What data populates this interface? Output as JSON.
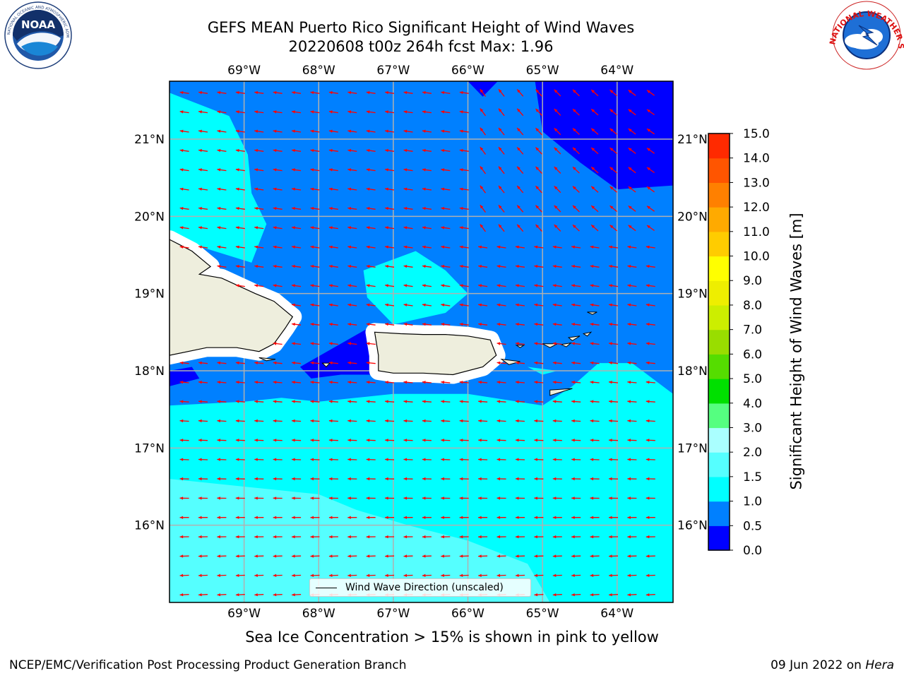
{
  "title": {
    "line1": "GEFS MEAN Puerto Rico Significant Height of Wind Waves",
    "line2": "20220608 t00z 264h fcst   Max: 1.96"
  },
  "subtitle": "Sea Ice Concentration > 15% is shown in pink to yellow",
  "footer": {
    "left": "NCEP/EMC/Verification Post Processing Product Generation Branch",
    "right_text": "09 Jun 2022 on ",
    "right_host": "Hera"
  },
  "logos": {
    "left": {
      "label": "NOAA",
      "ring_text": "NATIONAL OCEANIC AND ATMOSPHERIC ADMINISTRATION · U.S. DEPARTMENT OF COMMERCE"
    },
    "right": {
      "ring_text": "NATIONAL WEATHER SERVICE"
    }
  },
  "legend": {
    "label": "Wind Wave Direction (unscaled)"
  },
  "map": {
    "lon_range": [
      -70.0,
      -63.25
    ],
    "lat_range": [
      15.0,
      21.75
    ],
    "lon_ticks": [
      {
        "lon": -69,
        "label": "69°W"
      },
      {
        "lon": -68,
        "label": "68°W"
      },
      {
        "lon": -67,
        "label": "67°W"
      },
      {
        "lon": -66,
        "label": "66°W"
      },
      {
        "lon": -65,
        "label": "65°W"
      },
      {
        "lon": -64,
        "label": "64°W"
      }
    ],
    "lat_ticks": [
      {
        "lat": 21,
        "label": "21°N"
      },
      {
        "lat": 20,
        "label": "20°N"
      },
      {
        "lat": 19,
        "label": "19°N"
      },
      {
        "lat": 18,
        "label": "18°N"
      },
      {
        "lat": 17,
        "label": "17°N"
      },
      {
        "lat": 16,
        "label": "16°N"
      }
    ],
    "arrow_color": "#ff0000",
    "land_color": "#eeeedd",
    "gridlines": true,
    "field_regions": [
      {
        "level": "0.0-0.5",
        "color": "#0000ff",
        "lonlat": [
          [
            -65.1,
            21.75
          ],
          [
            -63.25,
            21.75
          ],
          [
            -63.25,
            20.4
          ],
          [
            -64.0,
            20.35
          ],
          [
            -64.5,
            20.7
          ],
          [
            -65.0,
            21.1
          ]
        ]
      },
      {
        "level": "0.0-0.5",
        "color": "#0000ff",
        "lonlat": [
          [
            -66.0,
            21.75
          ],
          [
            -65.6,
            21.75
          ],
          [
            -65.8,
            21.55
          ]
        ]
      },
      {
        "level": "0.0-0.5",
        "color": "#0000ff",
        "lonlat": [
          [
            -68.25,
            18.05
          ],
          [
            -67.25,
            18.6
          ],
          [
            -67.25,
            17.95
          ],
          [
            -67.7,
            17.95
          ],
          [
            -68.1,
            17.9
          ]
        ]
      },
      {
        "level": "0.0-0.5",
        "color": "#0000ff",
        "lonlat": [
          [
            -70.0,
            18.0
          ],
          [
            -69.7,
            18.05
          ],
          [
            -69.6,
            17.9
          ],
          [
            -70.0,
            17.8
          ]
        ]
      },
      {
        "level": "1.0-1.5",
        "color": "#00ffff",
        "lonlat": [
          [
            -70.0,
            21.6
          ],
          [
            -69.2,
            21.3
          ],
          [
            -68.95,
            20.8
          ],
          [
            -68.9,
            20.3
          ],
          [
            -68.7,
            19.9
          ],
          [
            -68.9,
            19.4
          ],
          [
            -69.9,
            19.7
          ],
          [
            -70.0,
            19.8
          ]
        ]
      },
      {
        "level": "1.0-1.5",
        "color": "#00ffff",
        "lonlat": [
          [
            -67.4,
            19.3
          ],
          [
            -66.7,
            19.55
          ],
          [
            -66.3,
            19.3
          ],
          [
            -66.0,
            19.0
          ],
          [
            -66.3,
            18.75
          ],
          [
            -67.0,
            18.6
          ],
          [
            -67.35,
            18.95
          ]
        ]
      },
      {
        "level": "1.0-1.5",
        "color": "#00ffff",
        "lonlat": [
          [
            -70.0,
            17.55
          ],
          [
            -69.0,
            17.6
          ],
          [
            -68.5,
            17.65
          ],
          [
            -68.0,
            17.6
          ],
          [
            -67.0,
            17.7
          ],
          [
            -66.0,
            17.7
          ],
          [
            -65.0,
            17.55
          ],
          [
            -64.6,
            17.8
          ],
          [
            -64.25,
            18.1
          ],
          [
            -63.8,
            18.1
          ],
          [
            -63.25,
            17.7
          ],
          [
            -63.25,
            15.0
          ],
          [
            -70.0,
            15.0
          ]
        ]
      },
      {
        "level": "1.0-1.5",
        "color": "#00ffff",
        "lonlat": [
          [
            -65.2,
            18.05
          ],
          [
            -64.8,
            18.0
          ],
          [
            -65.0,
            17.95
          ]
        ]
      },
      {
        "level": "1.5-2.0",
        "color": "#55ffff",
        "lonlat": [
          [
            -70.0,
            16.6
          ],
          [
            -69.0,
            16.5
          ],
          [
            -68.0,
            16.4
          ],
          [
            -67.5,
            16.2
          ],
          [
            -66.8,
            16.0
          ],
          [
            -66.0,
            15.8
          ],
          [
            -65.2,
            15.5
          ],
          [
            -64.9,
            15.0
          ],
          [
            -70.0,
            15.0
          ]
        ]
      }
    ],
    "land": [
      {
        "name": "Hispaniola",
        "lonlat": [
          [
            -70.0,
            19.7
          ],
          [
            -69.7,
            19.55
          ],
          [
            -69.45,
            19.35
          ],
          [
            -69.6,
            19.25
          ],
          [
            -69.3,
            19.2
          ],
          [
            -68.85,
            19.0
          ],
          [
            -68.6,
            18.9
          ],
          [
            -68.35,
            18.7
          ],
          [
            -68.45,
            18.55
          ],
          [
            -68.6,
            18.35
          ],
          [
            -68.8,
            18.25
          ],
          [
            -69.1,
            18.3
          ],
          [
            -69.5,
            18.3
          ],
          [
            -70.0,
            18.2
          ]
        ]
      },
      {
        "name": "Puerto Rico",
        "lonlat": [
          [
            -67.25,
            18.5
          ],
          [
            -66.9,
            18.48
          ],
          [
            -66.6,
            18.47
          ],
          [
            -66.3,
            18.47
          ],
          [
            -66.0,
            18.45
          ],
          [
            -65.7,
            18.4
          ],
          [
            -65.62,
            18.2
          ],
          [
            -65.8,
            18.05
          ],
          [
            -66.2,
            17.95
          ],
          [
            -66.6,
            17.97
          ],
          [
            -67.0,
            17.97
          ],
          [
            -67.2,
            18.0
          ],
          [
            -67.2,
            18.2
          ]
        ]
      }
    ],
    "islands": [
      {
        "name": "Vieques",
        "lonlat": [
          [
            -65.55,
            18.15
          ],
          [
            -65.3,
            18.12
          ],
          [
            -65.45,
            18.08
          ]
        ]
      },
      {
        "name": "St. Thomas",
        "lonlat": [
          [
            -65.0,
            18.35
          ],
          [
            -64.8,
            18.35
          ],
          [
            -64.9,
            18.3
          ]
        ]
      },
      {
        "name": "St. John",
        "lonlat": [
          [
            -64.75,
            18.34
          ],
          [
            -64.62,
            18.36
          ],
          [
            -64.68,
            18.31
          ]
        ]
      },
      {
        "name": "Tortola",
        "lonlat": [
          [
            -64.65,
            18.43
          ],
          [
            -64.5,
            18.45
          ],
          [
            -64.6,
            18.39
          ]
        ]
      },
      {
        "name": "Virgin Gorda",
        "lonlat": [
          [
            -64.45,
            18.48
          ],
          [
            -64.35,
            18.5
          ],
          [
            -64.4,
            18.45
          ]
        ]
      },
      {
        "name": "Anegada",
        "lonlat": [
          [
            -64.4,
            18.76
          ],
          [
            -64.27,
            18.76
          ],
          [
            -64.33,
            18.73
          ]
        ]
      },
      {
        "name": "St. Croix",
        "lonlat": [
          [
            -64.9,
            17.75
          ],
          [
            -64.6,
            17.77
          ],
          [
            -64.9,
            17.68
          ]
        ]
      },
      {
        "name": "Saona",
        "lonlat": [
          [
            -68.8,
            18.17
          ],
          [
            -68.58,
            18.15
          ],
          [
            -68.7,
            18.13
          ]
        ]
      },
      {
        "name": "Mona",
        "lonlat": [
          [
            -67.95,
            18.1
          ],
          [
            -67.85,
            18.1
          ],
          [
            -67.9,
            18.05
          ]
        ]
      },
      {
        "name": "Culebra",
        "lonlat": [
          [
            -65.35,
            18.33
          ],
          [
            -65.25,
            18.33
          ],
          [
            -65.3,
            18.3
          ]
        ]
      }
    ]
  },
  "colorbar": {
    "label": "Significant Height of Wind Waves [m]",
    "ticks": [
      "0.0",
      "0.5",
      "1.0",
      "1.5",
      "2.0",
      "3.0",
      "4.0",
      "5.0",
      "6.0",
      "7.0",
      "8.0",
      "9.0",
      "10.0",
      "11.0",
      "12.0",
      "13.0",
      "14.0",
      "15.0"
    ],
    "colors": [
      "#0000ff",
      "#0080ff",
      "#00ffff",
      "#55ffff",
      "#aaffff",
      "#55ff80",
      "#00e000",
      "#55dd00",
      "#99dd00",
      "#ccee00",
      "#eeee00",
      "#ffff00",
      "#ffcc00",
      "#ffaa00",
      "#ff8000",
      "#ff5500",
      "#ff2a00"
    ]
  }
}
